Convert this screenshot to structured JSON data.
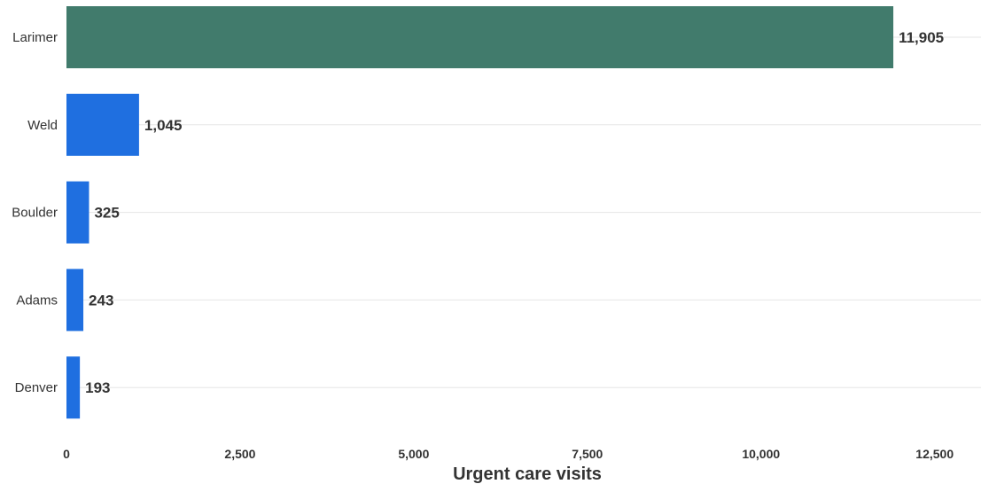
{
  "chart_data": {
    "type": "bar",
    "orientation": "horizontal",
    "categories": [
      "Larimer",
      "Weld",
      "Boulder",
      "Adams",
      "Denver"
    ],
    "values": [
      11905,
      1045,
      325,
      243,
      193
    ],
    "value_labels": [
      "11,905",
      "1,045",
      "325",
      "243",
      "193"
    ],
    "xlabel": "Urgent care visits",
    "ylabel": "",
    "xlim": [
      0,
      13000
    ],
    "x_ticks": [
      0,
      2500,
      5000,
      7500,
      10000,
      12500
    ],
    "x_tick_labels": [
      "0",
      "2,500",
      "5,000",
      "7,500",
      "10,000",
      "12,500"
    ],
    "grid": "horizontal gridlines at categories",
    "legend": "none",
    "colors": {
      "highlight": "#417b6c",
      "default": "#1f6fe0"
    },
    "highlighted_category": "Larimer"
  }
}
